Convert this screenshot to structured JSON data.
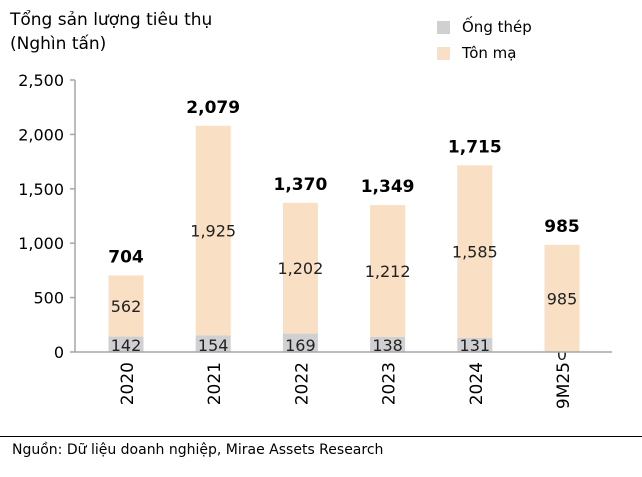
{
  "chart_data": {
    "type": "bar",
    "stacked": true,
    "title_lines": [
      "Tổng sản lượng tiêu thụ",
      "(Nghìn tấn)"
    ],
    "categories": [
      "2020",
      "2021",
      "2022",
      "2023",
      "2024",
      "9M25"
    ],
    "series": [
      {
        "name": "Ống thép",
        "color": "#d0d0d2",
        "values": [
          142,
          154,
          169,
          138,
          131,
          0
        ]
      },
      {
        "name": "Tôn mạ",
        "color": "#f9dfc4",
        "values": [
          562,
          1925,
          1202,
          1212,
          1585,
          985
        ]
      }
    ],
    "totals": [
      704,
      2079,
      1370,
      1349,
      1715,
      985
    ],
    "ylim": [
      0,
      2500
    ],
    "yticks": [
      0,
      500,
      1000,
      1500,
      2000,
      2500
    ],
    "ytick_labels": [
      "0",
      "500",
      "1,000",
      "1,500",
      "2,000",
      "2,500"
    ],
    "grid": false,
    "legend_position": "top-right"
  },
  "source": "Nguồn: Dữ liệu doanh nghiệp, Mirae Assets Research"
}
